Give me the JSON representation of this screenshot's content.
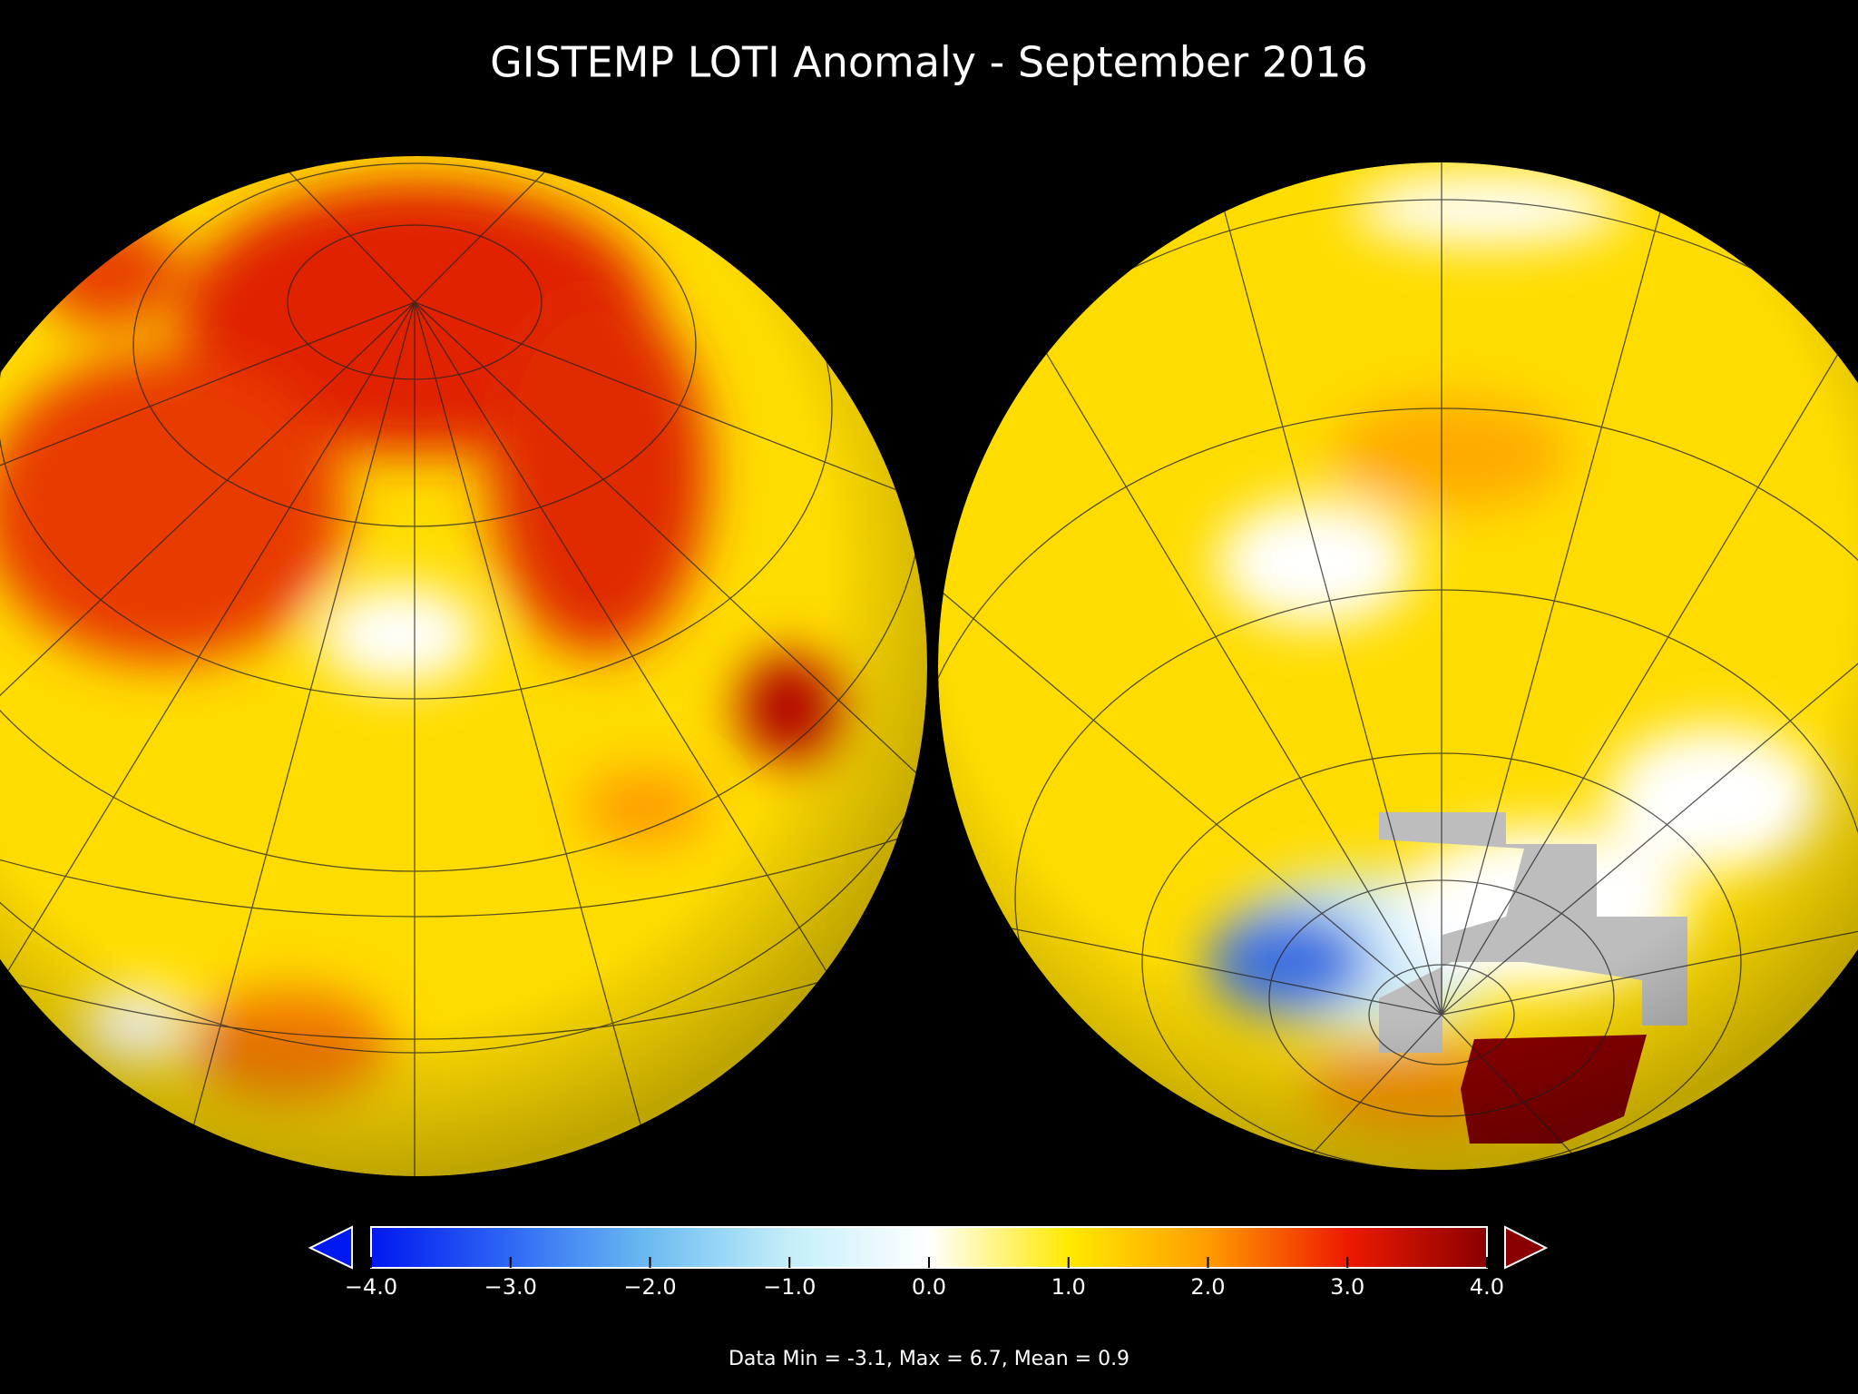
{
  "title": "GISTEMP LOTI Anomaly - September 2016",
  "colorbar": {
    "lim": [
      -4,
      4
    ],
    "ticks": [
      {
        "value": -4,
        "label": "−4.0"
      },
      {
        "value": -3,
        "label": "−3.0"
      },
      {
        "value": -2,
        "label": "−2.0"
      },
      {
        "value": -1,
        "label": "−1.0"
      },
      {
        "value": 0,
        "label": "0.0"
      },
      {
        "value": 1,
        "label": "1.0"
      },
      {
        "value": 2,
        "label": "2.0"
      },
      {
        "value": 3,
        "label": "3.0"
      },
      {
        "value": 4,
        "label": "4.0"
      }
    ]
  },
  "stats": "Data Min = -3.1, Max = 6.7, Mean = 0.9"
}
